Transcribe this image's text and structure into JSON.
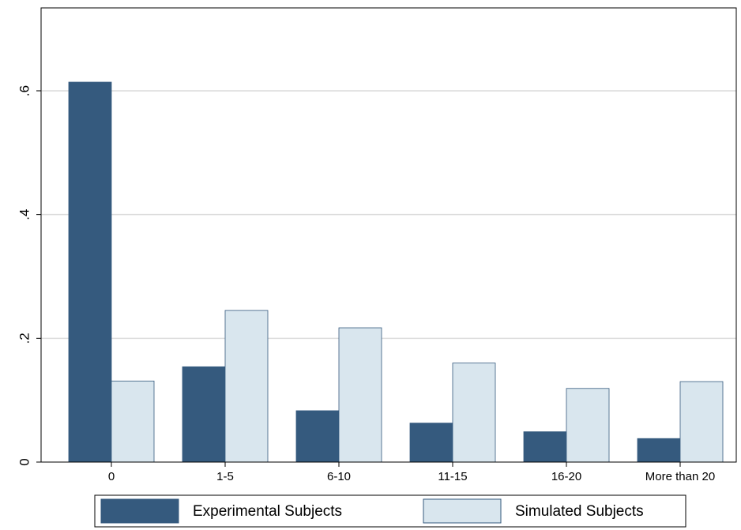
{
  "chart_data": {
    "type": "bar",
    "categories": [
      "0",
      "1-5",
      "6-10",
      "11-15",
      "16-20",
      "More than 20"
    ],
    "series": [
      {
        "name": "Experimental Subjects",
        "color": "#355a7e",
        "values": [
          0.614,
          0.154,
          0.083,
          0.063,
          0.049,
          0.038
        ]
      },
      {
        "name": "Simulated Subjects",
        "color": "#d9e6ee",
        "values": [
          0.131,
          0.245,
          0.217,
          0.16,
          0.119,
          0.13
        ]
      }
    ],
    "ylim": [
      0,
      0.734
    ],
    "yticks": [
      0,
      {
        "value": 0.2,
        "label": ".2"
      },
      {
        "value": 0.4,
        "label": ".4"
      },
      {
        "value": 0.6,
        "label": ".6"
      }
    ],
    "grid": true
  }
}
